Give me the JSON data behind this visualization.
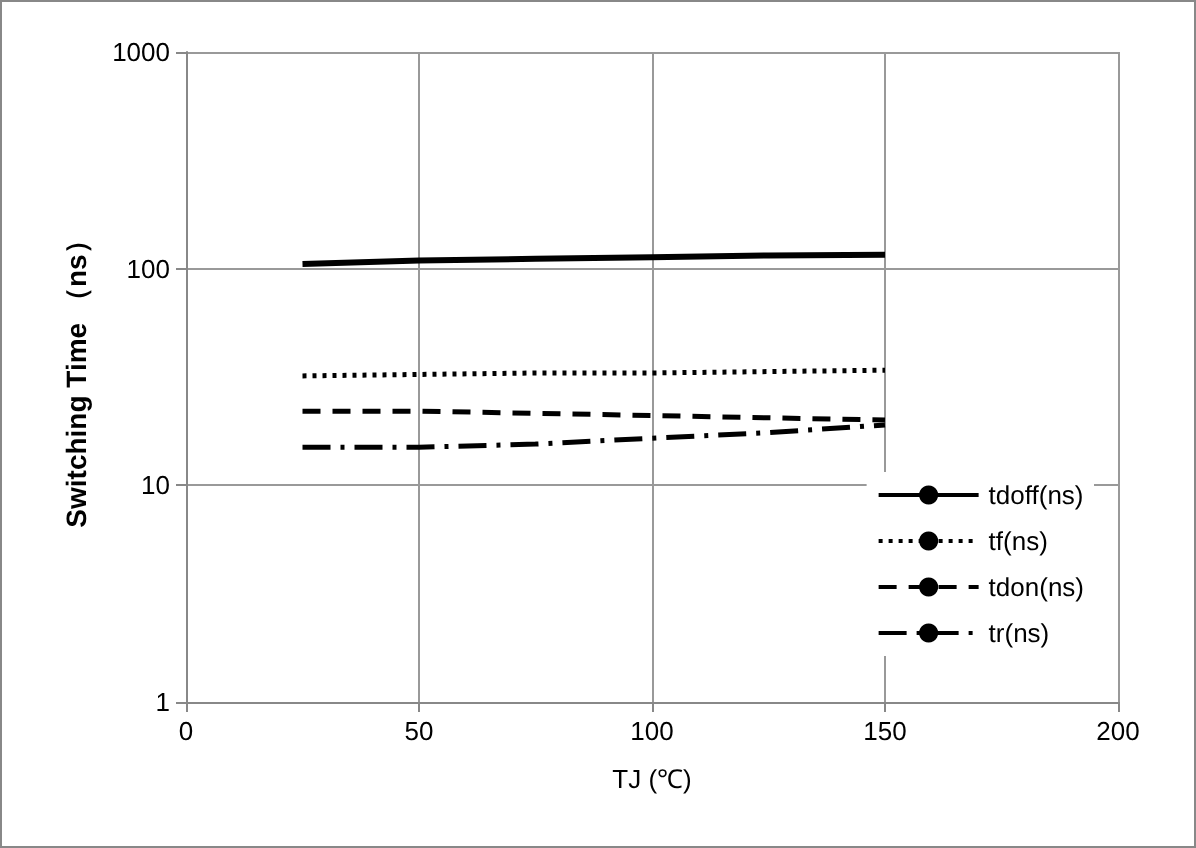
{
  "chart_data": {
    "type": "line",
    "xlabel": "TJ (℃)",
    "ylabel": "Switching Time （ns）",
    "xlim": [
      0,
      200
    ],
    "xticks": [
      0,
      50,
      100,
      150,
      200
    ],
    "ylim": [
      1,
      1000
    ],
    "yticks": [
      1,
      10,
      100,
      1000
    ],
    "log": "y",
    "grid": true,
    "legend": "bottom right",
    "marker": "none",
    "series": [
      {
        "name": "tdoff(ns)",
        "color": "#000000",
        "line_style": "solid",
        "x": [
          25,
          50,
          75,
          100,
          125,
          150
        ],
        "values": [
          105,
          109,
          111,
          113,
          115,
          116
        ]
      },
      {
        "name": "tf(ns)",
        "color": "#000000",
        "line_style": "dotted",
        "x": [
          25,
          50,
          75,
          100,
          125,
          150
        ],
        "values": [
          32,
          32.5,
          33,
          33,
          33.5,
          34
        ]
      },
      {
        "name": "tdon(ns)",
        "color": "#000000",
        "line_style": "dashed",
        "x": [
          25,
          50,
          75,
          100,
          125,
          150
        ],
        "values": [
          22,
          22,
          21.5,
          21,
          20.5,
          20
        ]
      },
      {
        "name": "tr(ns)",
        "color": "#000000",
        "line_style": "dashdot",
        "x": [
          25,
          50,
          75,
          100,
          125,
          150
        ],
        "values": [
          15,
          15,
          15.5,
          16.5,
          17.5,
          19
        ]
      }
    ]
  }
}
